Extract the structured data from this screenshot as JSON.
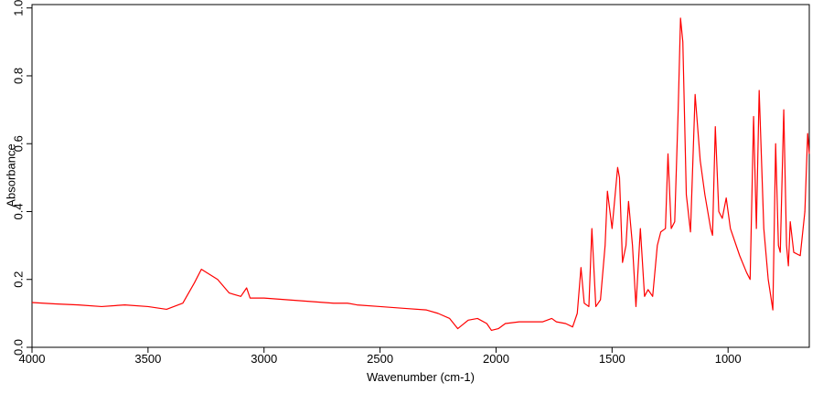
{
  "chart_data": {
    "type": "line",
    "x_label": "Wavenumber (cm-1)",
    "y_label": "Absorbance",
    "xlim": [
      4000,
      650
    ],
    "ylim": [
      0,
      1.01
    ],
    "xticks": [
      4000,
      3500,
      3000,
      2500,
      2000,
      1500,
      1000
    ],
    "yticks": [
      {
        "value": 0,
        "label": "0.0"
      },
      0.2,
      0.4,
      0.6,
      0.8,
      {
        "value": 1,
        "label": "1.0"
      }
    ],
    "series": [
      {
        "color": "#ff0000",
        "x": [
          4000,
          3900,
          3800,
          3700,
          3600,
          3500,
          3420,
          3350,
          3300,
          3270,
          3200,
          3150,
          3100,
          3075,
          3060,
          3000,
          2900,
          2800,
          2700,
          2640,
          2600,
          2500,
          2400,
          2300,
          2250,
          2200,
          2165,
          2120,
          2080,
          2040,
          2020,
          1990,
          1960,
          1900,
          1800,
          1760,
          1740,
          1700,
          1670,
          1650,
          1634,
          1620,
          1600,
          1587,
          1570,
          1550,
          1530,
          1520,
          1500,
          1476,
          1468,
          1455,
          1440,
          1429,
          1412,
          1397,
          1378,
          1360,
          1345,
          1325,
          1305,
          1290,
          1270,
          1259,
          1245,
          1230,
          1215,
          1205,
          1195,
          1180,
          1162,
          1142,
          1120,
          1100,
          1075,
          1067,
          1055,
          1040,
          1025,
          1008,
          990,
          950,
          920,
          905,
          890,
          878,
          866,
          846,
          827,
          807,
          795,
          783,
          775,
          760,
          748,
          740,
          732,
          717,
          689,
          669,
          657,
          650
        ],
        "values": [
          0.132,
          0.128,
          0.125,
          0.12,
          0.125,
          0.12,
          0.112,
          0.13,
          0.19,
          0.23,
          0.2,
          0.16,
          0.15,
          0.175,
          0.145,
          0.145,
          0.14,
          0.135,
          0.13,
          0.13,
          0.125,
          0.12,
          0.115,
          0.11,
          0.1,
          0.085,
          0.055,
          0.08,
          0.085,
          0.07,
          0.05,
          0.055,
          0.07,
          0.075,
          0.075,
          0.085,
          0.075,
          0.07,
          0.06,
          0.1,
          0.235,
          0.13,
          0.12,
          0.35,
          0.12,
          0.14,
          0.3,
          0.46,
          0.35,
          0.53,
          0.5,
          0.25,
          0.3,
          0.43,
          0.3,
          0.12,
          0.35,
          0.15,
          0.17,
          0.15,
          0.3,
          0.34,
          0.35,
          0.57,
          0.35,
          0.37,
          0.7,
          0.97,
          0.9,
          0.45,
          0.34,
          0.745,
          0.55,
          0.45,
          0.35,
          0.33,
          0.65,
          0.4,
          0.38,
          0.44,
          0.35,
          0.27,
          0.22,
          0.2,
          0.68,
          0.35,
          0.757,
          0.35,
          0.2,
          0.11,
          0.6,
          0.3,
          0.28,
          0.7,
          0.3,
          0.24,
          0.37,
          0.28,
          0.27,
          0.4,
          0.63,
          0.57
        ]
      }
    ]
  }
}
